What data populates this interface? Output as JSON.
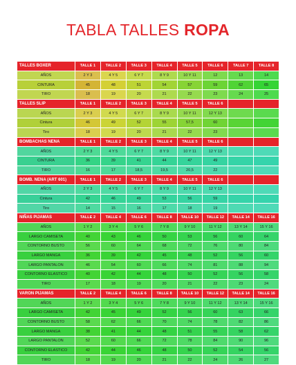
{
  "header": {
    "title": "TABLA TALLES",
    "title_bold": "ROPA"
  },
  "sections": [
    {
      "title": "TALLES BOXER",
      "headers": [
        "TALLE 1",
        "TALLE 2",
        "TALLE 3",
        "TALLE 4",
        "TALLE 5",
        "TALLE 6",
        "TALLE 7",
        "TALLE 8"
      ],
      "rows": [
        {
          "label": "AÑOS",
          "values": [
            "2 Y 3",
            "4 Y 5",
            "6 Y 7",
            "8 Y 9",
            "10 Y 11",
            "12",
            "13",
            "14"
          ]
        },
        {
          "label": "CINTURA",
          "values": [
            "45",
            "48",
            "51",
            "54",
            "57",
            "59",
            "62",
            "65"
          ]
        },
        {
          "label": "TIRO",
          "values": [
            "18",
            "19",
            "20",
            "21",
            "22",
            "23",
            "24",
            "25"
          ]
        }
      ]
    },
    {
      "title": "TALLES SLIP",
      "headers": [
        "TALLE 1",
        "TALLE 2",
        "TALLE 3",
        "TALLE 4",
        "TALLE 5",
        "TALLE 6"
      ],
      "rows": [
        {
          "label": "AÑOS",
          "values": [
            "2 Y 3",
            "4 Y 5",
            "6 Y 7",
            "8 Y 9",
            "10 Y 11",
            "12 Y 13"
          ]
        },
        {
          "label": "Cintura",
          "values": [
            "46",
            "49",
            "52",
            "55",
            "57,5",
            "60"
          ]
        },
        {
          "label": "Tiro",
          "values": [
            "18",
            "19",
            "20",
            "21",
            "22",
            "23"
          ]
        }
      ]
    },
    {
      "title": "BOMBACHAS NENA",
      "headers": [
        "TALLE 1",
        "TALLE 2",
        "TALLE 3",
        "TALLE 4",
        "TALLE 5",
        "TALLE 6"
      ],
      "rows": [
        {
          "label": "AÑOS",
          "values": [
            "2 Y 3",
            "4 Y 5",
            "6 Y 7",
            "8 Y 9",
            "10 Y 11",
            "12 Y 13"
          ]
        },
        {
          "label": "CINTURA",
          "values": [
            "36",
            "39",
            "41",
            "44",
            "47",
            "49"
          ]
        },
        {
          "label": "TIRO",
          "values": [
            "16",
            "17",
            "18,5",
            "19,5",
            "20,5",
            "22"
          ]
        }
      ]
    },
    {
      "title": "BOMB. NENA (ART 601)",
      "headers": [
        "TALLE 1",
        "TALLE 2",
        "TALLE 3",
        "TALLE 4",
        "TALLE 5",
        "TALLE 6"
      ],
      "rows": [
        {
          "label": "AÑOS",
          "values": [
            "2 Y 3",
            "4 Y 5",
            "6 Y 7",
            "8 Y 9",
            "10 Y 11",
            "12 Y 13"
          ]
        },
        {
          "label": "Cintura",
          "values": [
            "42",
            "46",
            "49",
            "53",
            "56",
            "59"
          ]
        },
        {
          "label": "Tiro",
          "values": [
            "14",
            "15",
            "16",
            "17",
            "18",
            "19"
          ]
        }
      ]
    },
    {
      "title": "NIÑAS PIJAMAS",
      "headers": [
        "TALLE 2",
        "TALLE 4",
        "TALLE 6",
        "TALLE 8",
        "TALLE 10",
        "TALLE 12",
        "TALLE 14",
        "TALLE 16"
      ],
      "rows": [
        {
          "label": "AÑOS",
          "values": [
            "1 Y 2",
            "3 Y 4",
            "5 Y 6",
            "7 Y 8",
            "9 Y 10",
            "11 Y 12",
            "13 Y 14",
            "15 Y 16"
          ]
        },
        {
          "label": "LARGO CAMISETA",
          "values": [
            "40",
            "43",
            "46",
            "50",
            "53",
            "56",
            "60",
            "64"
          ]
        },
        {
          "label": "CONTORNO BUSTO",
          "values": [
            "56",
            "60",
            "64",
            "68",
            "72",
            "76",
            "80",
            "84"
          ]
        },
        {
          "label": "LARGO MANGA",
          "values": [
            "36",
            "39",
            "42",
            "45",
            "48",
            "52",
            "56",
            "60"
          ]
        },
        {
          "label": "LARGO PANTALON",
          "values": [
            "46",
            "54",
            "60",
            "66",
            "74",
            "81",
            "88",
            "94"
          ]
        },
        {
          "label": "CONTORNO ELASTICO",
          "values": [
            "40",
            "42",
            "44",
            "48",
            "50",
            "52",
            "56",
            "58"
          ]
        },
        {
          "label": "TIRO",
          "values": [
            "17",
            "18",
            "19",
            "20",
            "21",
            "22",
            "23",
            "24"
          ]
        }
      ]
    },
    {
      "title": "VARON PIJAMAS",
      "headers": [
        "TALLE 2",
        "TALLE 4",
        "TALLE 6",
        "TALLE 8",
        "TALLE 10",
        "TALLE 12",
        "TALLE 14",
        "TALLE 16"
      ],
      "rows": [
        {
          "label": "AÑOS",
          "values": [
            "1 Y 2",
            "3 Y 4",
            "5 Y 6",
            "7 Y 8",
            "9 Y 10",
            "11 Y 12",
            "13 Y 14",
            "15 Y 16"
          ]
        },
        {
          "label": "LARGO CAMISETA",
          "values": [
            "42",
            "45",
            "49",
            "52",
            "56",
            "60",
            "63",
            "66"
          ]
        },
        {
          "label": "CONTORNO BUSTO",
          "values": [
            "58",
            "62",
            "66",
            "70",
            "74",
            "78",
            "82",
            "86"
          ]
        },
        {
          "label": "LARGO MANGA",
          "values": [
            "38",
            "41",
            "44",
            "48",
            "51",
            "55",
            "58",
            "62"
          ]
        },
        {
          "label": "LARGO PANTALON",
          "values": [
            "52",
            "60",
            "66",
            "72",
            "78",
            "84",
            "90",
            "96"
          ]
        },
        {
          "label": "CONTORNO ELASTICO",
          "values": [
            "42",
            "44",
            "46",
            "48",
            "50",
            "52",
            "54",
            "56"
          ]
        },
        {
          "label": "TIRO",
          "values": [
            "18",
            "19",
            "20",
            "21",
            "22",
            "24",
            "26",
            "27"
          ]
        }
      ]
    }
  ]
}
